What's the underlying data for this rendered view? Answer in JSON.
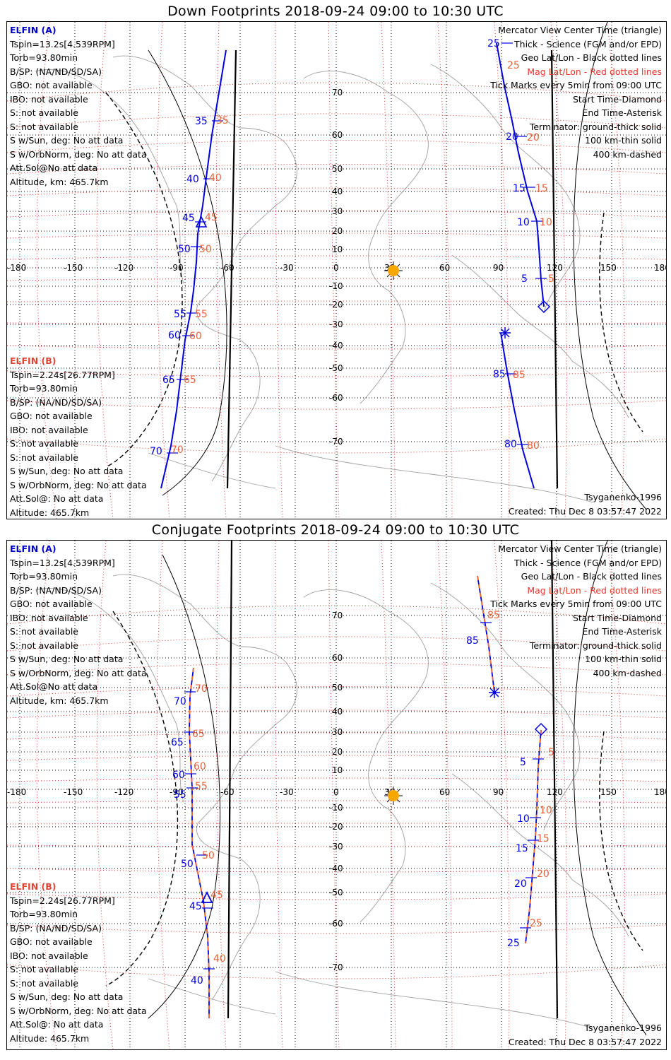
{
  "panels": [
    {
      "title": "Down Footprints 2018-09-24 09:00 to 10:30 UTC",
      "elfin_a": {
        "header": "ELFIN (A)",
        "lines": [
          "Tspin=13.2s[4.539RPM]",
          "Torb=93.80min",
          "B/SP: (NA/ND/SD/SA)",
          "GBO: not available",
          "IBO: not available",
          "S: not available",
          "S: not available",
          "S w/Sun, deg: No att data",
          "S w/OrbNorm, deg: No att data",
          "Att.Sol@No att data",
          "Altitude, km: 465.7km"
        ]
      },
      "elfin_b": {
        "header": "ELFIN (B)",
        "lines": [
          "Tspin=2.24s[26.77RPM]",
          "Torb=93.80min",
          "B/SP: (NA/ND/SD/SA)",
          "GBO: not available",
          "IBO: not available",
          "S: not available",
          "S: not available",
          "S w/Sun, deg: No att data",
          "S w/OrbNorm, deg: No att data",
          "Att.Sol@: No att data",
          "Altitude: 465.7km"
        ]
      },
      "legend": [
        "Mercator View Center Time (triangle)",
        "Thick - Science (FGM and/or EPD)",
        "Geo Lat/Lon - Black dotted lines",
        "Mag Lat/Lon - Red dotted lines",
        "Tick Marks every 5min from 09:00 UTC",
        "Start Time-Diamond",
        "End Time-Asterisk",
        "Terminator: ground-thick solid",
        "100 km-thin solid",
        "400 km-dashed"
      ],
      "model": "Tsyganenko-1996",
      "created": "Created: Thu Dec  8 03:57:47 2022"
    },
    {
      "title": "Conjugate Footprints 2018-09-24 09:00 to 10:30 UTC",
      "elfin_a": {
        "header": "ELFIN (A)",
        "lines": [
          "Tspin=13.2s[4.539RPM]",
          "Torb=93.80min",
          "B/SP: (NA/ND/SD/SA)",
          "GBO: not available",
          "IBO: not available",
          "S: not available",
          "S: not available",
          "S w/Sun, deg: No att data",
          "S w/OrbNorm, deg: No att data",
          "Att.Sol@No att data",
          "Altitude, km: 465.7km"
        ]
      },
      "elfin_b": {
        "header": "ELFIN (B)",
        "lines": [
          "Tspin=2.24s[26.77RPM]",
          "Torb=93.80min",
          "B/SP: (NA/ND/SD/SA)",
          "GBO: not available",
          "IBO: not available",
          "S: not available",
          "S: not available",
          "S w/Sun, deg: No att data",
          "S w/OrbNorm, deg: No att data",
          "Att.Sol@: No att data",
          "Altitude: 465.7km"
        ]
      },
      "legend": [
        "Mercator View Center Time (triangle)",
        "Thick - Science (FGM and/or EPD)",
        "Geo Lat/Lon - Black dotted lines",
        "Mag Lat/Lon - Red dotted lines",
        "Tick Marks every 5min from 09:00 UTC",
        "Start Time-Diamond",
        "End Time-Asterisk",
        "Terminator: ground-thick solid",
        "100 km-thin solid",
        "400 km-dashed"
      ],
      "model": "Tsyganenko-1996",
      "created": "Created: Thu Dec  8 03:57:47 2022"
    }
  ],
  "grid": {
    "lon_labels": [
      "-180",
      "-150",
      "-120",
      "-90",
      "-60",
      "-30",
      "0",
      "30",
      "60",
      "90",
      "120",
      "150",
      "180"
    ],
    "lat_labels_top": [
      "70",
      "60",
      "50",
      "40",
      "30",
      "20",
      "10",
      "0",
      "-10",
      "-20",
      "-30",
      "-40",
      "-50",
      "-60",
      "-70"
    ],
    "lat_labels_bottom": [
      "70",
      "60",
      "50",
      "40",
      "30",
      "20",
      "10",
      "0",
      "-10",
      "-20",
      "-30",
      "-40",
      "-50",
      "-60",
      "-70"
    ]
  },
  "colors": {
    "track": "#0000dd",
    "mag": "#e8362b",
    "geo": "#000000",
    "coast": "#9a9a9a",
    "sun": "#f7a800",
    "tick_red": "#e8623a"
  },
  "track_ticks": {
    "down_a": [
      "25",
      "20",
      "15",
      "10",
      "5",
      "85",
      "80"
    ],
    "down_a_red": [
      "25",
      "20",
      "15",
      "10",
      "5",
      "85",
      "80"
    ],
    "down_b": [
      "35",
      "40",
      "45",
      "50",
      "55",
      "60",
      "65",
      "70"
    ],
    "down_b_red": [
      "35",
      "40",
      "45",
      "50",
      "55",
      "60",
      "65",
      "70"
    ],
    "conj_a": [
      "85",
      "5",
      "10",
      "15",
      "20",
      "25"
    ],
    "conj_a_red": [
      "85",
      "5",
      "10",
      "15",
      "20",
      "25"
    ],
    "conj_b": [
      "70",
      "65",
      "60",
      "55",
      "50",
      "45",
      "40"
    ],
    "conj_b_red": [
      "70",
      "65",
      "60",
      "55",
      "50",
      "45",
      "40"
    ]
  }
}
